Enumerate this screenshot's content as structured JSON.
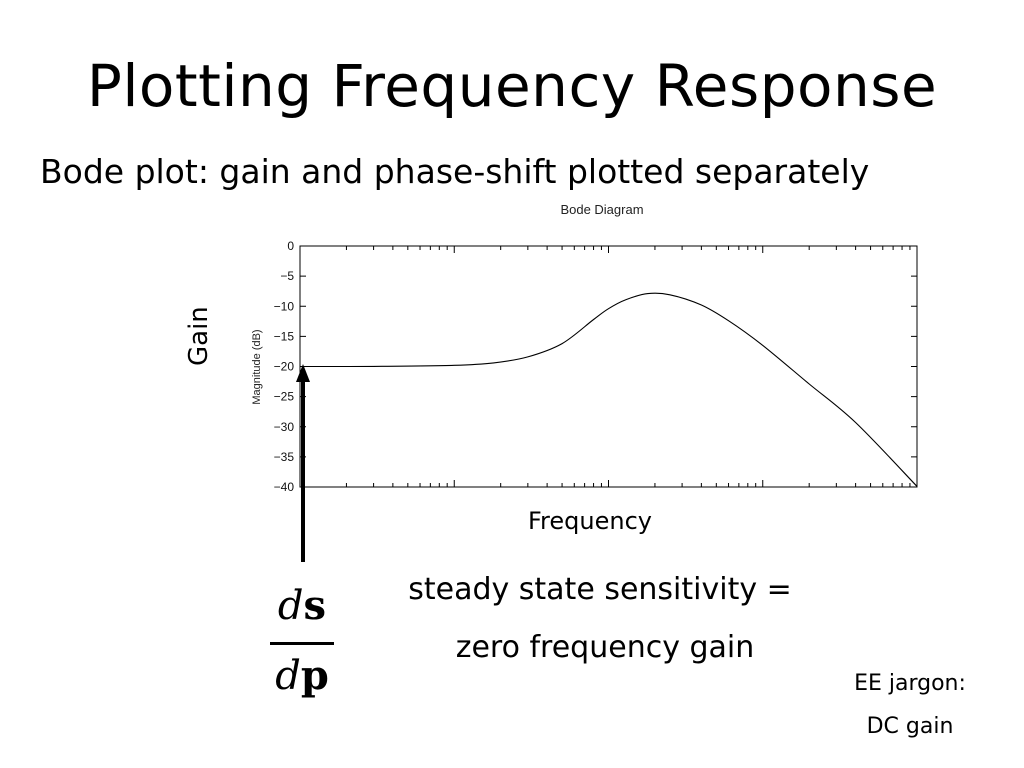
{
  "slide": {
    "title": "Plotting Frequency Response",
    "subtitle": "Bode plot: gain and phase-shift plotted separately",
    "gain_label": "Gain",
    "frequency_label": "Frequency",
    "note_line1": "steady state sensitivity =",
    "note_line2": "zero frequency gain",
    "jargon_line1": "EE jargon:",
    "jargon_line2": "DC gain",
    "fraction": {
      "num_d": "d",
      "num_var": "s",
      "den_d": "d",
      "den_var": "p"
    }
  },
  "chart_data": {
    "type": "line",
    "title": "Bode Diagram",
    "ylabel": "Magnitude (dB)",
    "xlabel": "",
    "xscale": "log",
    "xlim": [
      0.01,
      100
    ],
    "ylim": [
      -40,
      0
    ],
    "yticks": [
      0,
      -5,
      -10,
      -15,
      -20,
      -25,
      -30,
      -35,
      -40
    ],
    "ytick_labels": [
      "0",
      "−5",
      "−10",
      "−15",
      "−20",
      "−25",
      "−30",
      "−35",
      "−40"
    ],
    "grid": false,
    "series": [
      {
        "color": "#000000",
        "x": [
          0.01,
          0.03,
          0.1,
          0.18,
          0.3,
          0.5,
          0.8,
          1.0,
          1.3,
          1.8,
          2.5,
          4,
          6,
          10,
          20,
          40,
          100
        ],
        "y": [
          -20,
          -19.98,
          -19.8,
          -19.4,
          -18.4,
          -16.2,
          -12.2,
          -10.4,
          -8.9,
          -7.9,
          -8.1,
          -9.8,
          -12.4,
          -16.5,
          -22.9,
          -29.3,
          -39.9
        ]
      }
    ]
  }
}
